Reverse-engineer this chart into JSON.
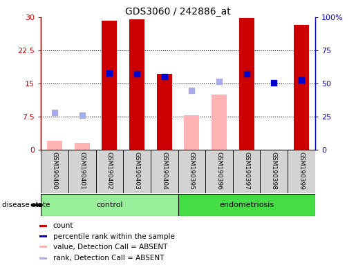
{
  "title": "GDS3060 / 242886_at",
  "samples": [
    "GSM190400",
    "GSM190401",
    "GSM190402",
    "GSM190403",
    "GSM190404",
    "GSM190395",
    "GSM190396",
    "GSM190397",
    "GSM190398",
    "GSM190399"
  ],
  "red_bars": [
    null,
    null,
    29.2,
    29.5,
    17.2,
    null,
    null,
    29.8,
    null,
    28.2
  ],
  "pink_bars": [
    2.0,
    1.5,
    null,
    null,
    null,
    7.8,
    12.5,
    null,
    null,
    null
  ],
  "blue_squares": [
    null,
    null,
    17.3,
    17.2,
    16.5,
    null,
    null,
    17.2,
    15.2,
    15.8
  ],
  "light_blue_squares": [
    8.5,
    7.8,
    null,
    null,
    null,
    13.5,
    15.5,
    null,
    null,
    null
  ],
  "ylim_left": [
    0,
    30
  ],
  "ylim_right": [
    0,
    100
  ],
  "yticks_left": [
    0,
    7.5,
    15,
    22.5,
    30
  ],
  "yticks_right": [
    0,
    25,
    50,
    75,
    100
  ],
  "ytick_labels_left": [
    "0",
    "7.5",
    "15",
    "22.5",
    "30"
  ],
  "ytick_labels_right": [
    "0",
    "25",
    "50",
    "75",
    "100%"
  ],
  "left_axis_color": "#cc0000",
  "right_axis_color": "#0000cc",
  "red_bar_color": "#cc0000",
  "pink_bar_color": "#ffb3b3",
  "blue_square_color": "#0000cc",
  "light_blue_square_color": "#aaaaee",
  "legend_items": [
    {
      "label": "count",
      "color": "#cc0000"
    },
    {
      "label": "percentile rank within the sample",
      "color": "#0000cc"
    },
    {
      "label": "value, Detection Call = ABSENT",
      "color": "#ffb3b3"
    },
    {
      "label": "rank, Detection Call = ABSENT",
      "color": "#aaaaee"
    }
  ],
  "control_color": "#99ee99",
  "endo_color": "#44dd44",
  "label_bg_color": "#d3d3d3",
  "bar_width": 0.55,
  "square_size": 35
}
